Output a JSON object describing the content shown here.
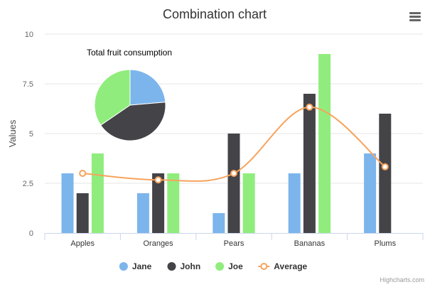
{
  "chart_data": {
    "type": "bar",
    "title": "Combination chart",
    "subtitle": "",
    "xlabel": "",
    "ylabel": "Values",
    "ylim": [
      0,
      10
    ],
    "yticks": [
      "0",
      "2.5",
      "5",
      "7.5",
      "10"
    ],
    "categories": [
      "Apples",
      "Oranges",
      "Pears",
      "Bananas",
      "Plums"
    ],
    "series": [
      {
        "name": "Jane",
        "type": "column",
        "values": [
          3,
          2,
          1,
          3,
          4
        ],
        "color": "#7cb5ec"
      },
      {
        "name": "John",
        "type": "column",
        "values": [
          2,
          3,
          5,
          7,
          6
        ],
        "color": "#434348"
      },
      {
        "name": "Joe",
        "type": "column",
        "values": [
          4,
          3,
          3,
          9,
          0
        ],
        "color": "#90ed7d"
      },
      {
        "name": "Average",
        "type": "spline",
        "values": [
          3,
          2.67,
          3,
          6.33,
          3.33
        ],
        "color": "#f7a35c"
      }
    ],
    "pie": {
      "title": "Total fruit consumption",
      "slices": [
        {
          "name": "Jane",
          "value": 13,
          "color": "#7cb5ec"
        },
        {
          "name": "John",
          "value": 23,
          "color": "#434348"
        },
        {
          "name": "Joe",
          "value": 19,
          "color": "#90ed7d"
        }
      ]
    },
    "grid": true,
    "legend": "bottom-center"
  },
  "credits": "Highcharts.com",
  "menu_icon": "hamburger-menu-icon"
}
